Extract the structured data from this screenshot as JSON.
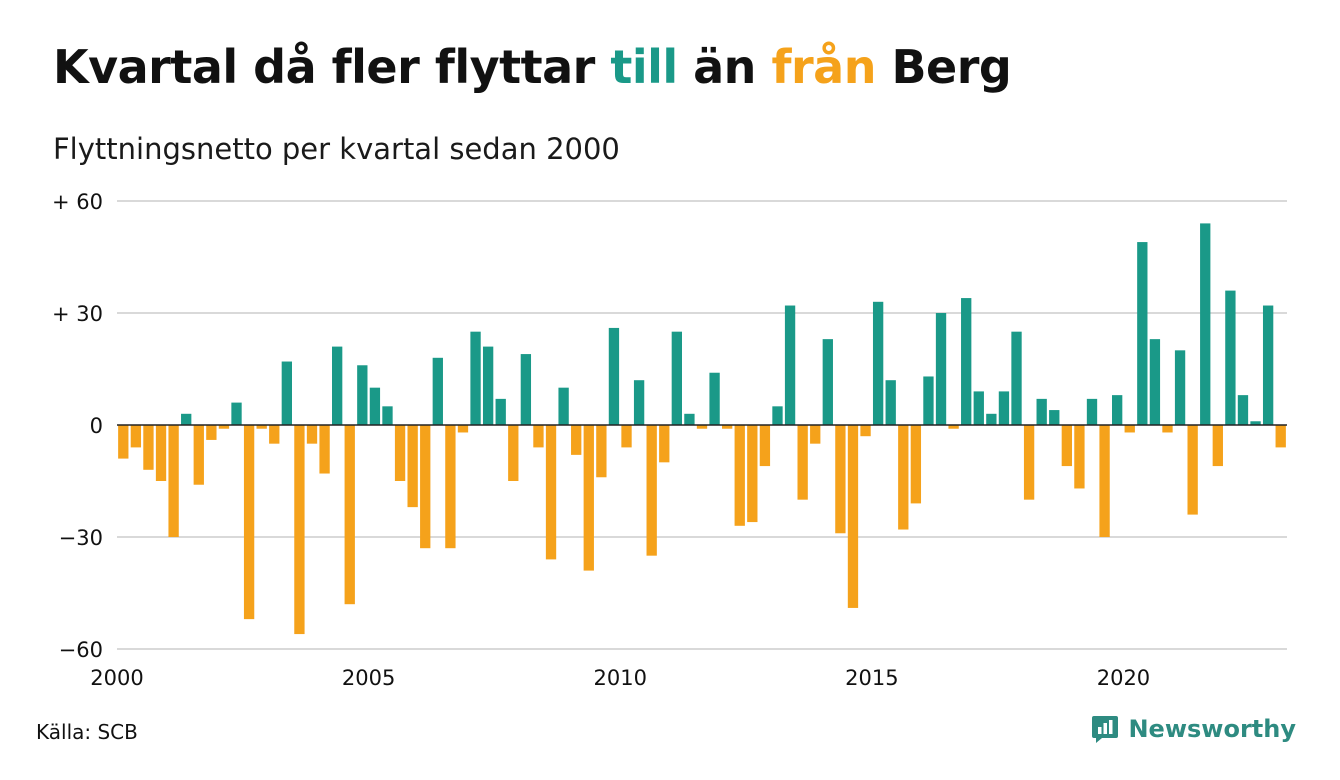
{
  "header": {
    "title_parts": [
      "Kvartal då fler flyttar ",
      "till",
      " än ",
      "från",
      " Berg"
    ],
    "subtitle": "Flyttningsnetto per kvartal sedan 2000"
  },
  "colors": {
    "positive": "#1a9988",
    "negative": "#f5a21b",
    "grid": "#d9d9d9",
    "text": "#111111",
    "brand": "#2e8b81"
  },
  "footer": {
    "source": "Källa: SCB",
    "brand": "Newsworthy",
    "brand_icon": "newsworthy-logo-icon"
  },
  "chart_data": {
    "type": "bar",
    "title": "Kvartal då fler flyttar till än från Berg",
    "subtitle": "Flyttningsnetto per kvartal sedan 2000",
    "xlabel": "",
    "ylabel": "",
    "ylim": [
      -60,
      60
    ],
    "xlim": [
      2000,
      2023.25
    ],
    "yticks": [
      {
        "value": 60,
        "label": "+ 60"
      },
      {
        "value": 30,
        "label": "+ 30"
      },
      {
        "value": 0,
        "label": "0"
      },
      {
        "value": -30,
        "label": "−30"
      },
      {
        "value": -60,
        "label": "−60"
      }
    ],
    "xticks": [
      {
        "value": 2000,
        "label": "2000"
      },
      {
        "value": 2005,
        "label": "2005"
      },
      {
        "value": 2010,
        "label": "2010"
      },
      {
        "value": 2015,
        "label": "2015"
      },
      {
        "value": 2020,
        "label": "2020"
      }
    ],
    "grid": true,
    "series": [
      {
        "color_rule": "positive=teal, negative=orange",
        "start_year": 2000,
        "quarters_per_year": 4,
        "values": [
          -9,
          -6,
          -12,
          -15,
          -30,
          3,
          -16,
          -4,
          -1,
          6,
          -52,
          -1,
          -5,
          17,
          -56,
          -5,
          -13,
          21,
          -48,
          16,
          10,
          5,
          -15,
          -22,
          -33,
          18,
          -33,
          -2,
          25,
          21,
          7,
          -15,
          19,
          -6,
          -36,
          10,
          -8,
          -39,
          -14,
          26,
          -6,
          12,
          -35,
          -10,
          25,
          3,
          -1,
          14,
          -1,
          -27,
          -26,
          -11,
          5,
          32,
          -20,
          -5,
          23,
          -29,
          -49,
          -3,
          33,
          12,
          -28,
          -21,
          13,
          30,
          -1,
          34,
          9,
          3,
          9,
          25,
          -20,
          7,
          4,
          -11,
          -17,
          7,
          -30,
          8,
          -2,
          49,
          23,
          -2,
          20,
          -24,
          54,
          -11,
          36,
          8,
          1,
          32,
          -6
        ]
      }
    ]
  }
}
